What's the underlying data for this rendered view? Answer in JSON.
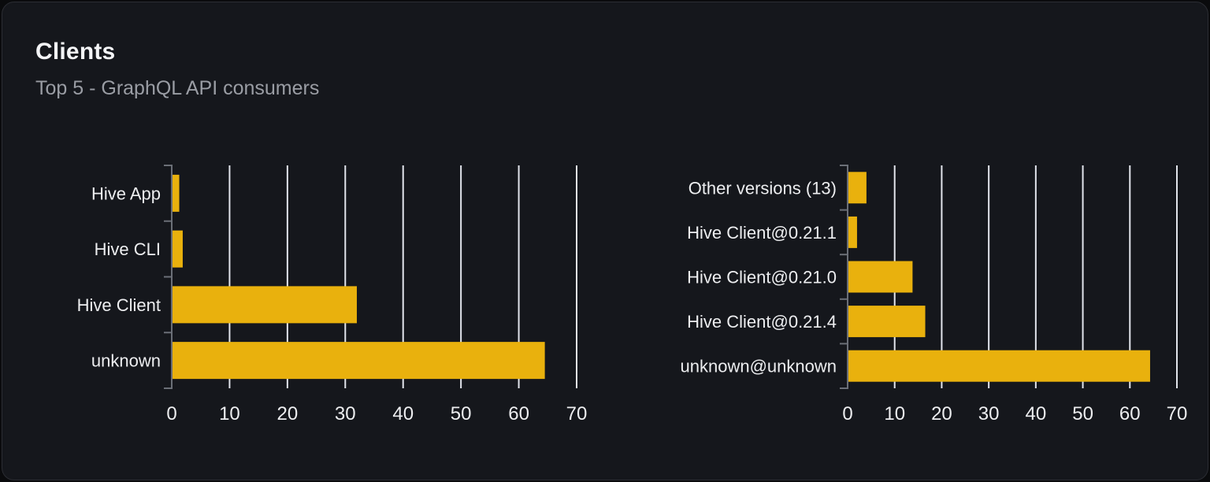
{
  "header": {
    "title": "Clients",
    "subtitle": "Top 5 - GraphQL API consumers"
  },
  "colors": {
    "page_bg": "#0a0b0d",
    "card_bg": "#15171c",
    "card_border": "#2b2d33",
    "title": "#f3f4f6",
    "subtitle": "#9a9da4",
    "bar": "#e9b10d",
    "grid": "#e2e5ec",
    "axis": "#6b6f77",
    "label": "#edeef0"
  },
  "chart_data": [
    {
      "type": "bar",
      "orientation": "horizontal",
      "name": "top-clients",
      "categories": [
        "Hive App",
        "Hive CLI",
        "Hive Client",
        "unknown"
      ],
      "values": [
        1.3,
        1.9,
        32,
        64.5
      ],
      "x_ticks": [
        0,
        10,
        20,
        30,
        40,
        50,
        60,
        70
      ],
      "xlim": [
        0,
        70
      ],
      "grid": true,
      "legend": false
    },
    {
      "type": "bar",
      "orientation": "horizontal",
      "name": "top-client-versions",
      "categories": [
        "Other versions (13)",
        "Hive Client@0.21.1",
        "Hive Client@0.21.0",
        "Hive Client@0.21.4",
        "unknown@unknown"
      ],
      "values": [
        4,
        2,
        13.8,
        16.5,
        64.3
      ],
      "x_ticks": [
        0,
        10,
        20,
        30,
        40,
        50,
        60,
        70
      ],
      "xlim": [
        0,
        70
      ],
      "grid": true,
      "legend": false
    }
  ]
}
